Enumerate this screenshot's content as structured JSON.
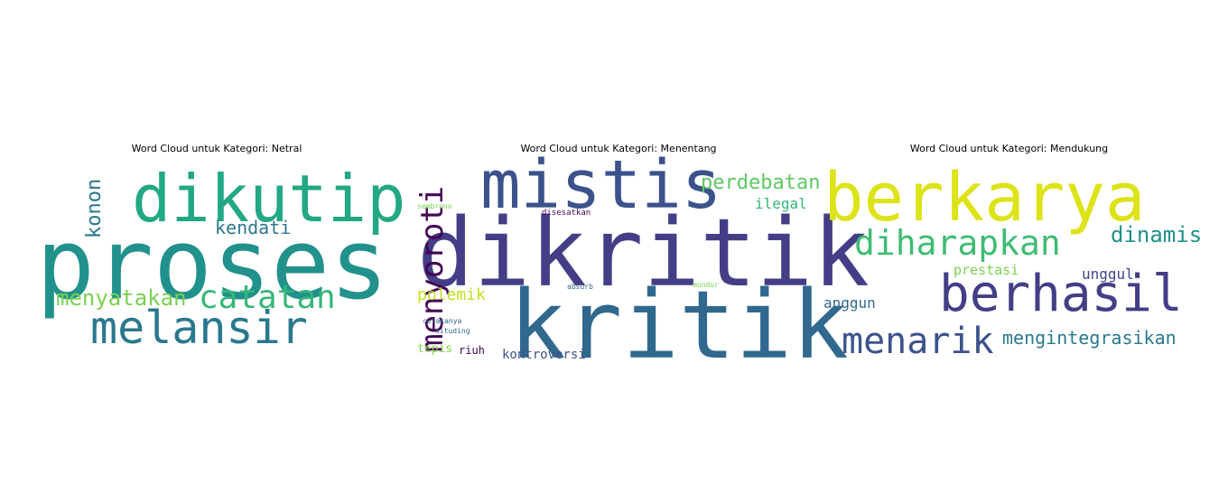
{
  "chart_data": [
    {
      "type": "wordcloud",
      "title": "Word Cloud untuk Kategori: Netral",
      "words": [
        {
          "text": "proses",
          "weight": 1.0,
          "color": "#21918c"
        },
        {
          "text": "dikutip",
          "weight": 0.72,
          "color": "#22a884"
        },
        {
          "text": "melansir",
          "weight": 0.48,
          "color": "#2a788e"
        },
        {
          "text": "catatan",
          "weight": 0.36,
          "color": "#35b779"
        },
        {
          "text": "menyatakan",
          "weight": 0.28,
          "color": "#7ad151"
        },
        {
          "text": "kendati",
          "weight": 0.2,
          "color": "#2a788e"
        },
        {
          "text": "konon",
          "weight": 0.22,
          "color": "#2a788e"
        }
      ]
    },
    {
      "type": "wordcloud",
      "title": "Word Cloud untuk Kategori: Menentang",
      "words": [
        {
          "text": "dikritik",
          "weight": 1.0,
          "color": "#433e85"
        },
        {
          "text": "kritik",
          "weight": 1.0,
          "color": "#31688e"
        },
        {
          "text": "mistis",
          "weight": 0.72,
          "color": "#3b528b"
        },
        {
          "text": "menyoroti",
          "weight": 0.4,
          "color": "#440154"
        },
        {
          "text": "perdebatan",
          "weight": 0.22,
          "color": "#5ec962"
        },
        {
          "text": "ilegal",
          "weight": 0.16,
          "color": "#35b779"
        },
        {
          "text": "polemik",
          "weight": 0.18,
          "color": "#c2df23"
        },
        {
          "text": "kontroversi",
          "weight": 0.14,
          "color": "#3b528b"
        },
        {
          "text": "tepis",
          "weight": 0.12,
          "color": "#86d549"
        },
        {
          "text": "riuh",
          "weight": 0.11,
          "color": "#440154"
        },
        {
          "text": "disesatkan",
          "weight": 0.08,
          "color": "#440154"
        },
        {
          "text": "sembrono",
          "weight": 0.07,
          "color": "#7ad151"
        },
        {
          "text": "absurb",
          "weight": 0.07,
          "color": "#31688e"
        },
        {
          "text": "mundur",
          "weight": 0.07,
          "color": "#7ad151"
        },
        {
          "text": "celakanya",
          "weight": 0.07,
          "color": "#31688e"
        },
        {
          "text": "dituding",
          "weight": 0.07,
          "color": "#31688e"
        }
      ]
    },
    {
      "type": "wordcloud",
      "title": "Word Cloud untuk Kategori: Mendukung",
      "words": [
        {
          "text": "berkarya",
          "weight": 1.0,
          "color": "#dde318"
        },
        {
          "text": "berhasil",
          "weight": 0.75,
          "color": "#433e85"
        },
        {
          "text": "menarik",
          "weight": 0.5,
          "color": "#3b528b"
        },
        {
          "text": "diharapkan",
          "weight": 0.46,
          "color": "#3fbc73"
        },
        {
          "text": "dinamis",
          "weight": 0.32,
          "color": "#21918c"
        },
        {
          "text": "mengintegrasikan",
          "weight": 0.26,
          "color": "#2a788e"
        },
        {
          "text": "unggul",
          "weight": 0.2,
          "color": "#414487"
        },
        {
          "text": "prestasi",
          "weight": 0.17,
          "color": "#7ad151"
        },
        {
          "text": "anggun",
          "weight": 0.18,
          "color": "#31688e"
        }
      ]
    }
  ]
}
